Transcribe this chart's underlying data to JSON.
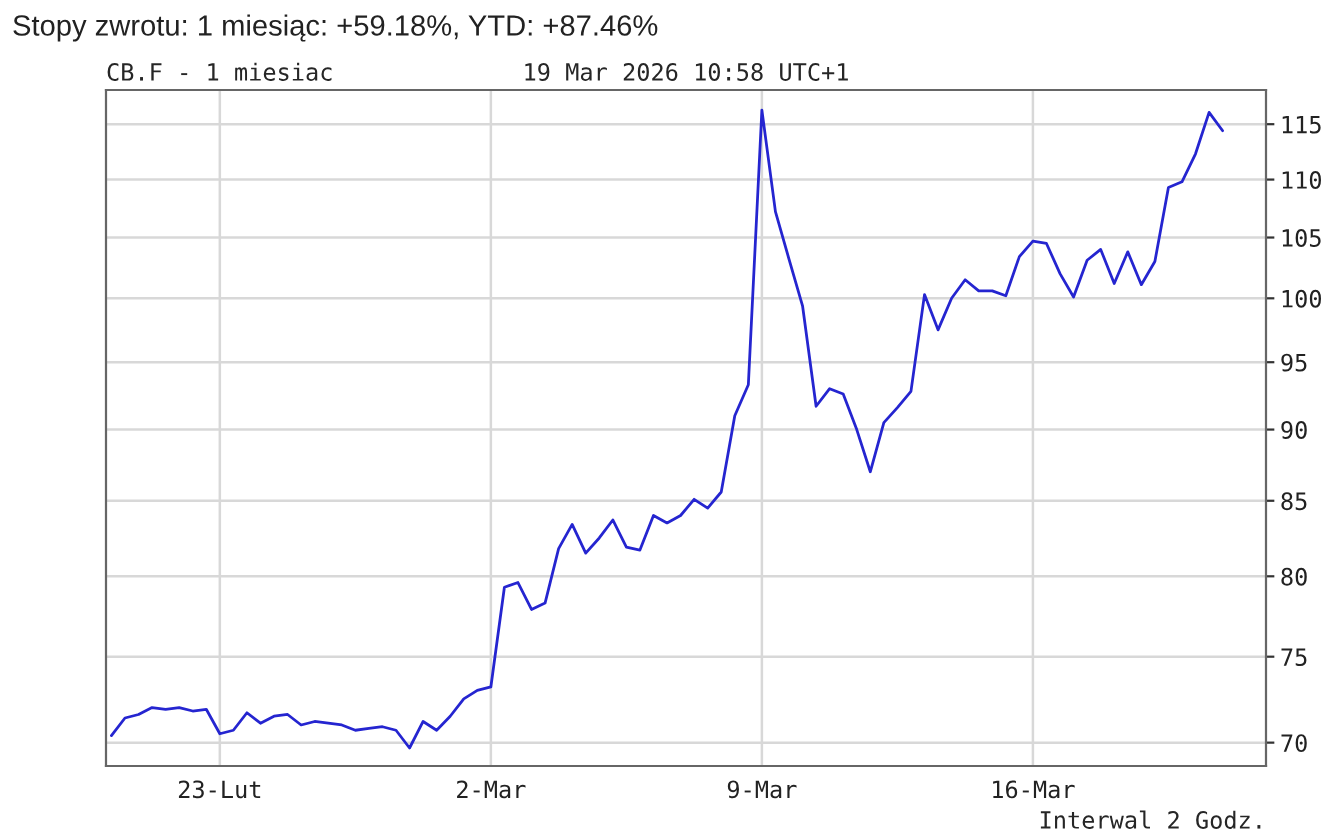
{
  "chart_data": {
    "type": "line",
    "title": "Stopy zwrotu: 1 miesiąc: +59.18%, YTD: +87.46%",
    "subtitle": "CB.F - 1 miesiac",
    "annotations": [
      "19 Mar 2026 10:58 UTC+1",
      "Interwal 2 Godz."
    ],
    "categories": [
      null,
      null,
      null,
      null,
      null,
      null,
      null,
      null,
      "23-Lut",
      null,
      null,
      null,
      null,
      null,
      null,
      null,
      null,
      null,
      null,
      null,
      null,
      null,
      null,
      null,
      null,
      null,
      null,
      null,
      "2-Mar",
      null,
      null,
      null,
      null,
      null,
      null,
      null,
      null,
      null,
      null,
      null,
      null,
      null,
      null,
      null,
      null,
      null,
      null,
      null,
      "9-Mar",
      null,
      null,
      null,
      null,
      null,
      null,
      null,
      null,
      null,
      null,
      null,
      null,
      null,
      null,
      null,
      null,
      null,
      null,
      null,
      "16-Mar",
      null,
      null,
      null,
      null,
      null,
      null,
      null,
      null,
      null,
      null,
      null,
      null,
      null,
      null
    ],
    "series": [
      {
        "color": "#2525d0",
        "values": [
          70.4,
          71.4,
          71.6,
          72.0,
          71.9,
          72.0,
          71.8,
          71.9,
          70.5,
          70.7,
          71.7,
          71.1,
          71.5,
          71.6,
          71.0,
          71.2,
          71.1,
          71.0,
          70.7,
          70.8,
          70.9,
          70.7,
          69.7,
          71.2,
          70.7,
          71.5,
          72.5,
          73.0,
          73.2,
          79.3,
          79.6,
          77.9,
          78.3,
          81.8,
          83.4,
          81.5,
          82.5,
          83.7,
          81.9,
          81.7,
          84.0,
          83.5,
          84.0,
          85.1,
          84.5,
          85.6,
          91.0,
          93.3,
          116.3,
          107.2,
          103.2,
          99.4,
          91.7,
          93.0,
          92.6,
          90.0,
          87.0,
          90.5,
          91.6,
          92.8,
          100.3,
          97.5,
          100.0,
          101.5,
          100.6,
          100.6,
          100.2,
          103.4,
          104.7,
          104.5,
          102.0,
          100.1,
          103.1,
          104.0,
          101.2,
          103.8,
          101.1,
          103.0,
          109.3,
          109.8,
          112.3,
          116.1,
          114.4
        ]
      }
    ],
    "log": true,
    "ylim": [
      68.7,
      118.2
    ],
    "yticks": [
      70,
      75,
      80,
      85,
      90,
      95,
      100,
      105,
      110,
      115
    ],
    "grid": true,
    "legend": false,
    "line_style": "solid",
    "marker": "none"
  }
}
